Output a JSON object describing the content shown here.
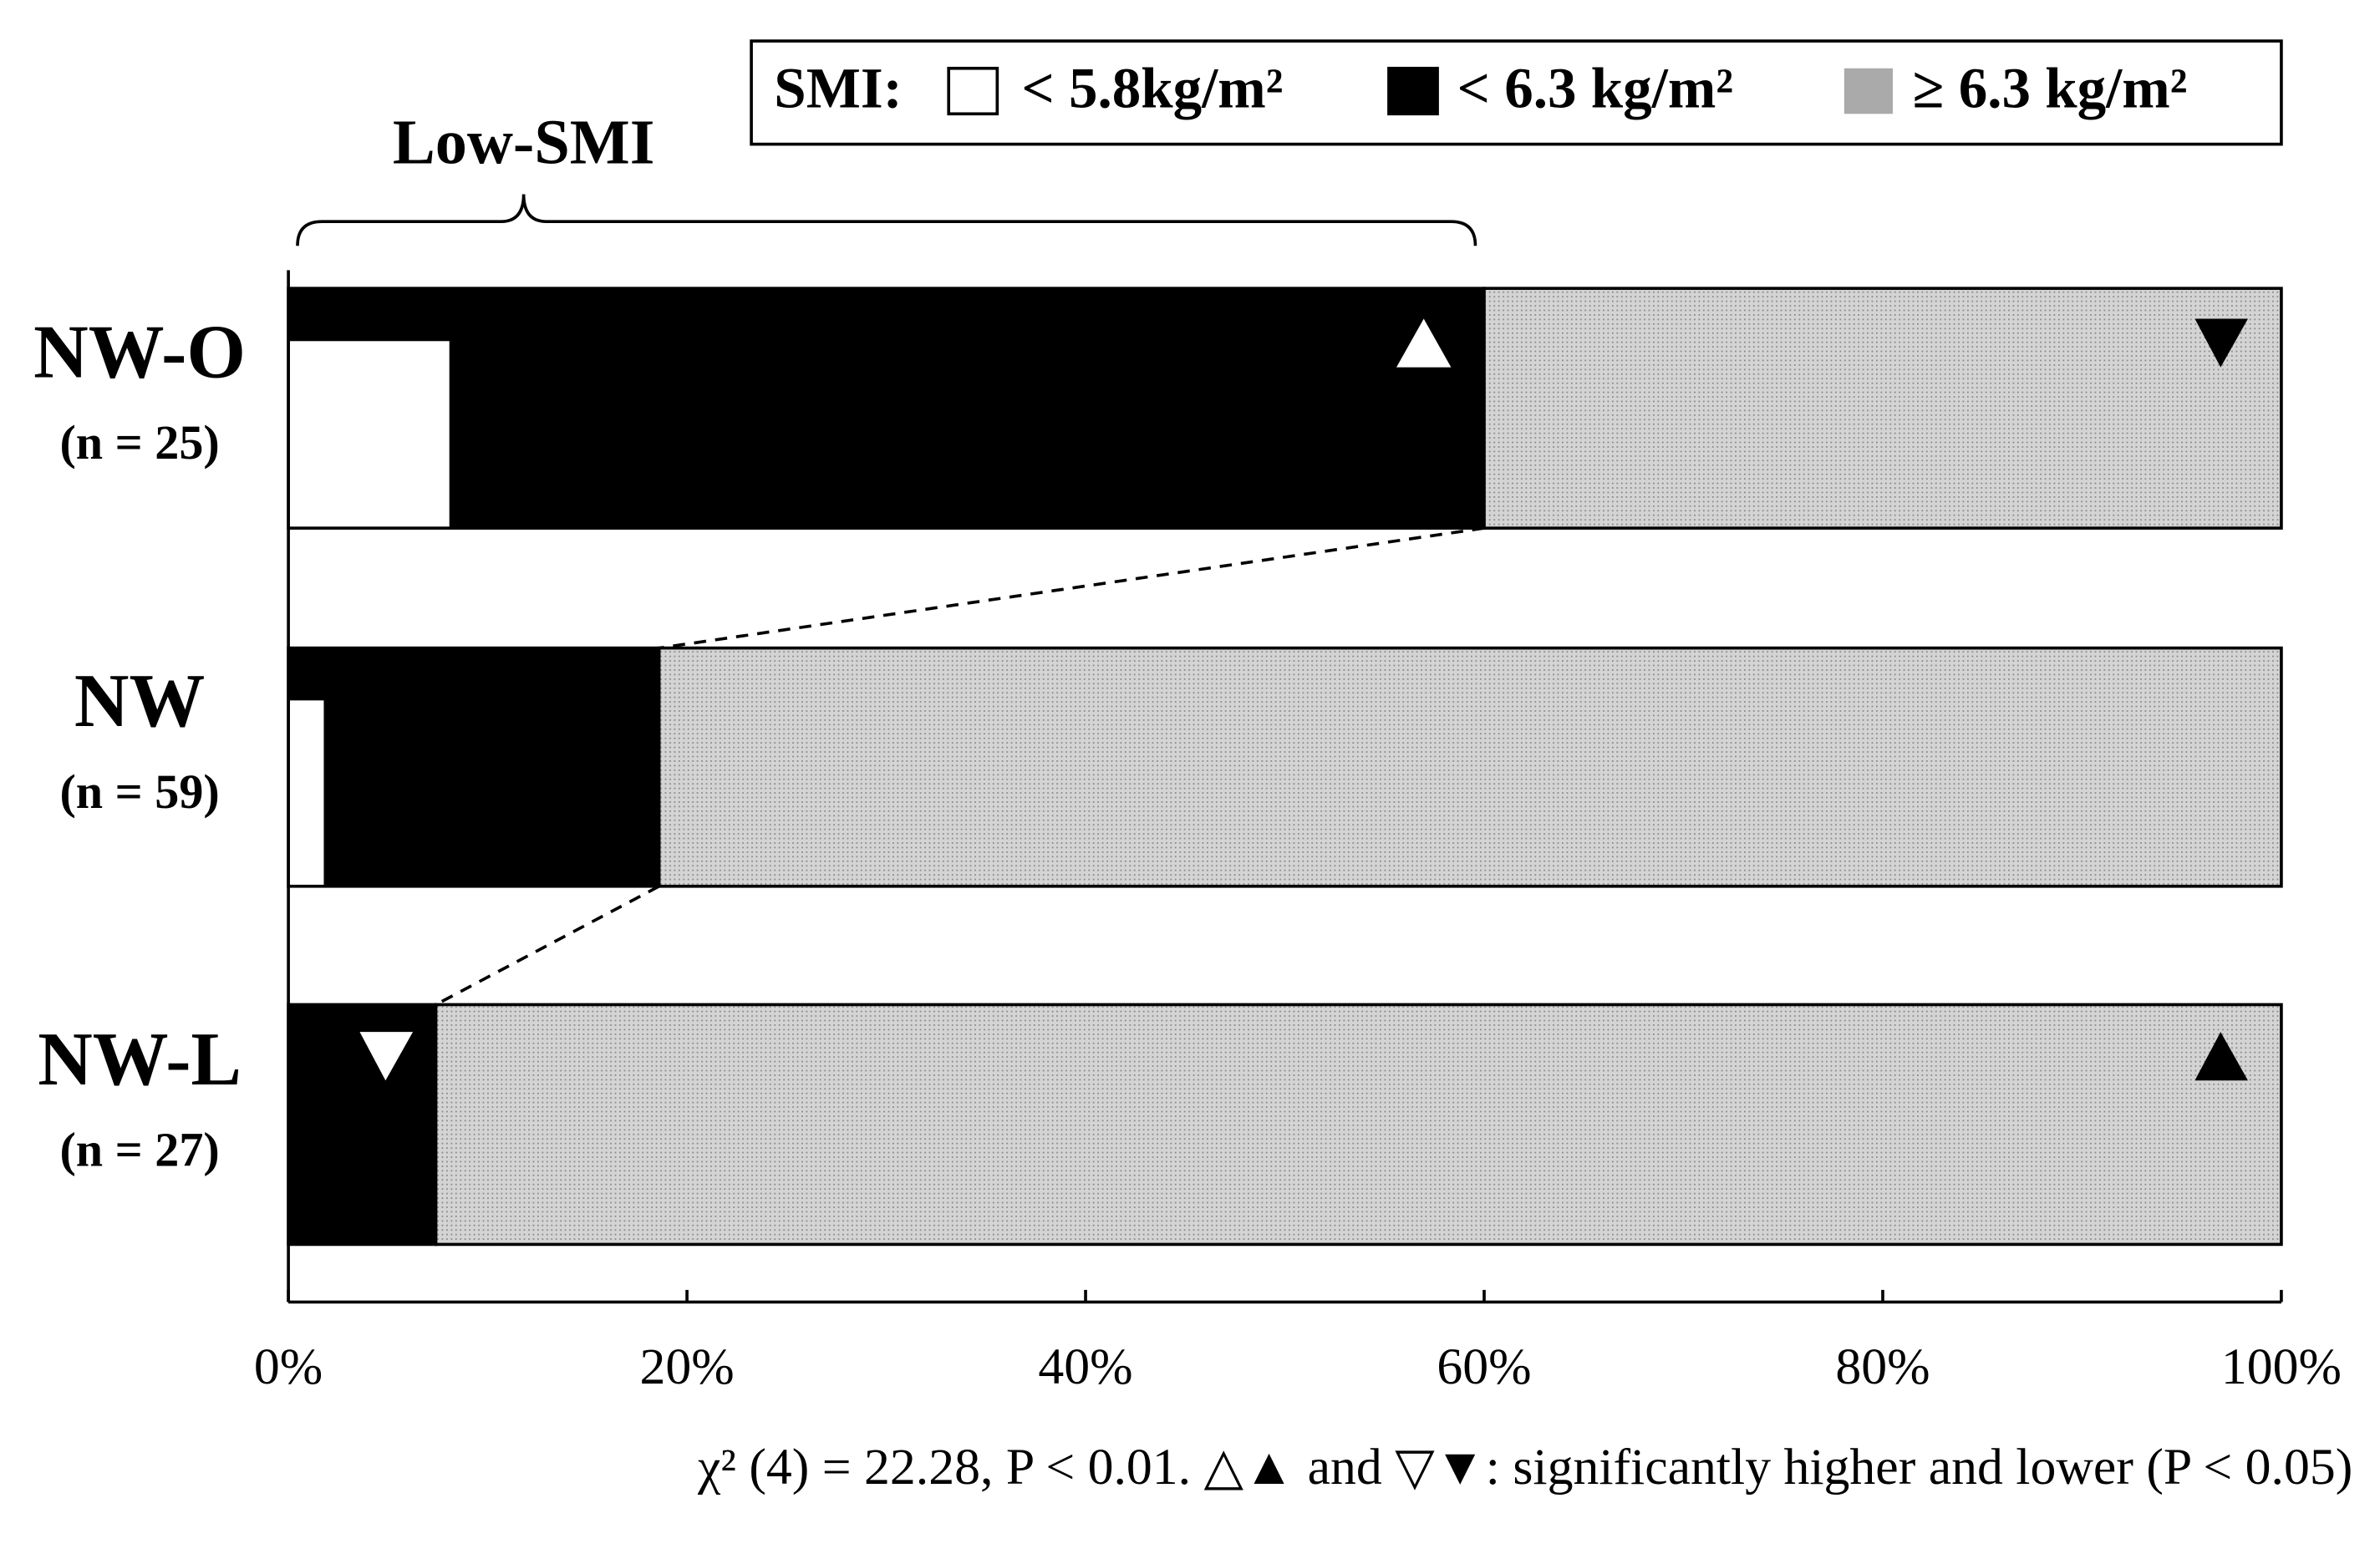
{
  "chart_data": {
    "type": "stacked-bar-horizontal",
    "legend_title": "SMI:",
    "categories": [
      "NW-O",
      "NW",
      "NW-L"
    ],
    "category_counts": [
      "(n = 25)",
      "(n = 59)",
      "(n = 27)"
    ],
    "series": [
      {
        "name": "< 5.8kg/m²",
        "color": "#ffffff",
        "values": [
          8,
          1.7,
          0
        ]
      },
      {
        "name": "< 6.3 kg/m²",
        "color": "#000000",
        "values": [
          60,
          18.6,
          7.4
        ]
      },
      {
        "name": "≥ 6.3 kg/m²",
        "color": "#c8c8c8",
        "values": [
          40,
          81.4,
          92.6
        ]
      }
    ],
    "xlim": [
      0,
      100
    ],
    "xticks": [
      {
        "value": 0,
        "label": "0%"
      },
      {
        "value": 20,
        "label": "20%"
      },
      {
        "value": 40,
        "label": "40%"
      },
      {
        "value": 60,
        "label": "60%"
      },
      {
        "value": 80,
        "label": "80%"
      },
      {
        "value": 100,
        "label": "100%"
      }
    ],
    "bracket_label": "Low-SMI",
    "footnote": "χ² (4) = 22.28, P < 0.01. △▲ and ▽▼: significantly higher and lower (P < 0.05)"
  }
}
